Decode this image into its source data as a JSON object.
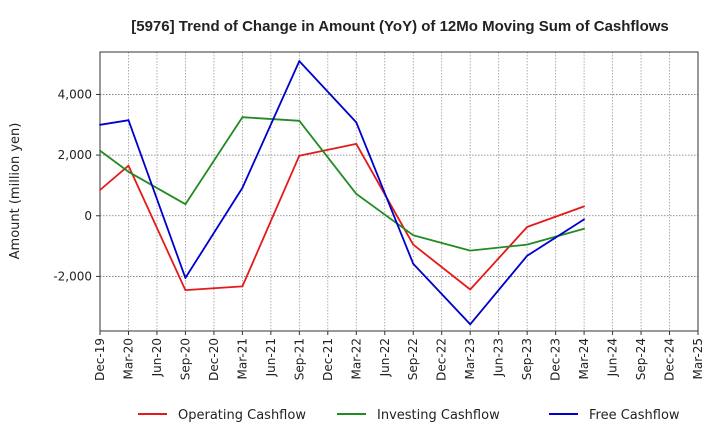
{
  "chart_data": {
    "type": "line",
    "title": "[5976]  Trend of Change in Amount (YoY) of 12Mo Moving Sum of Cashflows",
    "xlabel": "",
    "ylabel": "Amount (million yen)",
    "ylim": [
      -3800,
      5400
    ],
    "yticks": [
      -2000,
      0,
      2000,
      4000
    ],
    "ytick_labels": [
      "-2,000",
      "0",
      "2,000",
      "4,000"
    ],
    "grid": true,
    "legend_position": "bottom",
    "categories": [
      "Dec-19",
      "Mar-20",
      "Jun-20",
      "Sep-20",
      "Dec-20",
      "Mar-21",
      "Jun-21",
      "Sep-21",
      "Dec-21",
      "Mar-22",
      "Jun-22",
      "Sep-22",
      "Dec-22",
      "Mar-23",
      "Jun-23",
      "Sep-23",
      "Dec-23",
      "Mar-24",
      "Jun-24",
      "Sep-24",
      "Dec-24",
      "Mar-25"
    ],
    "series": [
      {
        "name": "Operating Cashflow",
        "color": "#e41a1a",
        "values": [
          850,
          1650,
          null,
          -2450,
          null,
          -2330,
          null,
          1980,
          null,
          2370,
          null,
          -950,
          null,
          -2430,
          null,
          -370,
          null,
          310,
          null,
          null,
          null,
          null
        ]
      },
      {
        "name": "Investing Cashflow",
        "color": "#228b22",
        "values": [
          2150,
          1450,
          null,
          380,
          null,
          3250,
          null,
          3130,
          null,
          720,
          null,
          -640,
          null,
          -1150,
          null,
          -950,
          null,
          -430,
          null,
          null,
          null,
          null
        ]
      },
      {
        "name": "Free Cashflow",
        "color": "#0000cc",
        "values": [
          3000,
          3150,
          null,
          -2050,
          null,
          920,
          null,
          5100,
          null,
          3080,
          null,
          -1580,
          null,
          -3580,
          null,
          -1320,
          null,
          -120,
          null,
          null,
          null,
          null
        ]
      }
    ]
  }
}
